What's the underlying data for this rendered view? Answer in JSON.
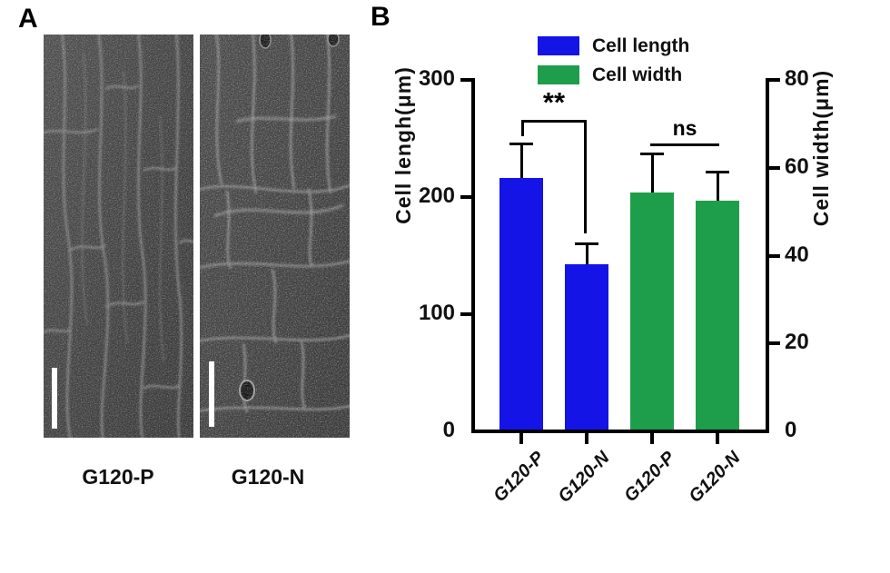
{
  "figure": {
    "panel_a": {
      "label": "A",
      "images": [
        {
          "label": "G120-P",
          "name": "sem-micrograph-g120-p",
          "scale_bar": true
        },
        {
          "label": "G120-N",
          "name": "sem-micrograph-g120-n",
          "scale_bar": true
        }
      ]
    },
    "panel_b": {
      "label": "B"
    }
  },
  "chart_data": {
    "type": "bar",
    "categories": [
      "G120-P",
      "G120-N",
      "G120-P",
      "G120-N"
    ],
    "series": [
      {
        "name": "Cell length",
        "color": "#1414e6",
        "axis": "left",
        "category_indices": [
          0,
          1
        ],
        "values": [
          215,
          141
        ],
        "errors_plus": [
          30,
          19
        ]
      },
      {
        "name": "Cell width",
        "color": "#1e9e4b",
        "axis": "right",
        "category_indices": [
          2,
          3
        ],
        "values": [
          54,
          52
        ],
        "errors_plus": [
          9,
          7
        ]
      }
    ],
    "left_axis": {
      "label": "Cell lengh(μm)",
      "ticks": [
        0,
        100,
        200,
        300
      ],
      "range": [
        0,
        300
      ]
    },
    "right_axis": {
      "label": "Cell width(μm)",
      "ticks": [
        0,
        20,
        40,
        60,
        80
      ],
      "range": [
        0,
        80
      ]
    },
    "annotations": [
      {
        "type": "bracket",
        "text": "**",
        "between_categories": [
          0,
          1
        ]
      },
      {
        "type": "line",
        "text": "ns",
        "between_categories": [
          2,
          3
        ]
      }
    ],
    "legend_position": "top",
    "grid": false
  }
}
